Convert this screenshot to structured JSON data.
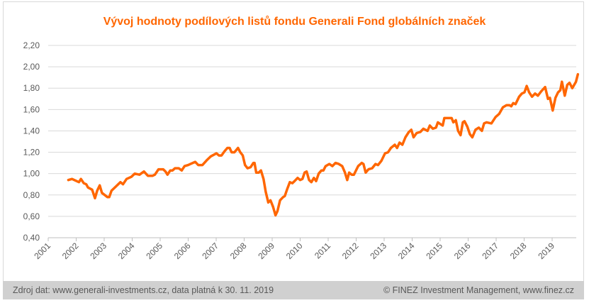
{
  "chart_data": {
    "type": "line",
    "title": "Vývoj hodnoty podílových listů fondu Generali Fond globálních značek",
    "xlabel": "",
    "ylabel": "",
    "xlim": [
      2001,
      2019.92
    ],
    "ylim": [
      0.4,
      2.2
    ],
    "grid": true,
    "legend": "none",
    "y_ticks": [
      "0,40",
      "0,60",
      "0,80",
      "1,00",
      "1,20",
      "1,40",
      "1,60",
      "1,80",
      "2,00",
      "2,20"
    ],
    "x_ticks": [
      "2001",
      "2002",
      "2003",
      "2004",
      "2005",
      "2006",
      "2007",
      "2008",
      "2009",
      "2010",
      "2011",
      "2012",
      "2013",
      "2014",
      "2015",
      "2016",
      "2017",
      "2018",
      "2019"
    ],
    "series": [
      {
        "name": "Generali Fond globálních značek",
        "color": "#ff6600",
        "x": [
          2001.72,
          2001.85,
          2002.1,
          2002.17,
          2002.27,
          2002.36,
          2002.42,
          2002.57,
          2002.67,
          2002.75,
          2002.84,
          2002.92,
          2003.12,
          2003.18,
          2003.26,
          2003.42,
          2003.58,
          2003.67,
          2003.8,
          2003.97,
          2004.09,
          2004.26,
          2004.42,
          2004.56,
          2004.73,
          2004.81,
          2004.94,
          2005.11,
          2005.19,
          2005.26,
          2005.36,
          2005.44,
          2005.53,
          2005.66,
          2005.77,
          2005.87,
          2006.0,
          2006.08,
          2006.25,
          2006.36,
          2006.51,
          2006.68,
          2006.8,
          2007.01,
          2007.1,
          2007.19,
          2007.3,
          2007.4,
          2007.48,
          2007.55,
          2007.65,
          2007.78,
          2007.86,
          2007.95,
          2008.03,
          2008.12,
          2008.23,
          2008.33,
          2008.37,
          2008.43,
          2008.52,
          2008.6,
          2008.69,
          2008.77,
          2008.86,
          2008.94,
          2009.03,
          2009.12,
          2009.19,
          2009.28,
          2009.39,
          2009.45,
          2009.53,
          2009.63,
          2009.72,
          2009.8,
          2009.91,
          2010.0,
          2010.08,
          2010.16,
          2010.23,
          2010.32,
          2010.4,
          2010.49,
          2010.57,
          2010.66,
          2010.76,
          2010.83,
          2010.91,
          2011.04,
          2011.15,
          2011.26,
          2011.38,
          2011.5,
          2011.6,
          2011.68,
          2011.75,
          2011.84,
          2011.92,
          2012.07,
          2012.2,
          2012.26,
          2012.34,
          2012.44,
          2012.57,
          2012.69,
          2012.78,
          2012.9,
          2013.03,
          2013.14,
          2013.24,
          2013.38,
          2013.46,
          2013.55,
          2013.65,
          2013.76,
          2013.88,
          2013.97,
          2014.05,
          2014.16,
          2014.29,
          2014.4,
          2014.55,
          2014.63,
          2014.74,
          2014.85,
          2014.92,
          2015.03,
          2015.09,
          2015.15,
          2015.28,
          2015.41,
          2015.47,
          2015.56,
          2015.64,
          2015.73,
          2015.81,
          2015.87,
          2015.97,
          2016.06,
          2016.15,
          2016.26,
          2016.38,
          2016.49,
          2016.57,
          2016.66,
          2016.83,
          2016.98,
          2017.11,
          2017.24,
          2017.37,
          2017.48,
          2017.54,
          2017.61,
          2017.69,
          2017.82,
          2017.92,
          2018.01,
          2018.09,
          2018.18,
          2018.28,
          2018.39,
          2018.49,
          2018.61,
          2018.75,
          2018.85,
          2018.92,
          2019.02,
          2019.12,
          2019.21,
          2019.29,
          2019.35,
          2019.45,
          2019.54,
          2019.62,
          2019.72,
          2019.85,
          2019.92
        ],
        "values": [
          0.94,
          0.95,
          0.92,
          0.95,
          0.91,
          0.9,
          0.87,
          0.85,
          0.77,
          0.84,
          0.89,
          0.82,
          0.78,
          0.78,
          0.84,
          0.88,
          0.92,
          0.9,
          0.95,
          0.97,
          1.0,
          0.99,
          1.02,
          0.98,
          0.98,
          0.99,
          1.04,
          1.04,
          1.02,
          0.99,
          1.03,
          1.03,
          1.05,
          1.05,
          1.03,
          1.07,
          1.08,
          1.09,
          1.11,
          1.08,
          1.08,
          1.13,
          1.16,
          1.19,
          1.17,
          1.17,
          1.21,
          1.24,
          1.24,
          1.2,
          1.2,
          1.24,
          1.2,
          1.17,
          1.08,
          1.05,
          1.06,
          1.1,
          1.1,
          1.01,
          1.01,
          1.03,
          0.95,
          0.83,
          0.73,
          0.75,
          0.69,
          0.61,
          0.65,
          0.75,
          0.78,
          0.79,
          0.85,
          0.92,
          0.91,
          0.93,
          0.96,
          0.94,
          0.95,
          1.01,
          1.02,
          0.94,
          0.92,
          0.96,
          0.93,
          1.0,
          1.03,
          1.03,
          1.07,
          1.09,
          1.07,
          1.1,
          1.09,
          1.07,
          1.01,
          0.94,
          1.01,
          0.99,
          0.99,
          1.07,
          1.1,
          1.09,
          1.01,
          1.04,
          1.05,
          1.09,
          1.08,
          1.12,
          1.19,
          1.2,
          1.24,
          1.27,
          1.24,
          1.29,
          1.27,
          1.34,
          1.39,
          1.41,
          1.34,
          1.38,
          1.39,
          1.42,
          1.4,
          1.45,
          1.42,
          1.43,
          1.48,
          1.46,
          1.45,
          1.52,
          1.52,
          1.52,
          1.48,
          1.5,
          1.4,
          1.36,
          1.48,
          1.49,
          1.44,
          1.37,
          1.34,
          1.41,
          1.43,
          1.4,
          1.47,
          1.48,
          1.47,
          1.53,
          1.56,
          1.62,
          1.64,
          1.64,
          1.63,
          1.66,
          1.65,
          1.72,
          1.75,
          1.76,
          1.82,
          1.76,
          1.72,
          1.75,
          1.73,
          1.77,
          1.81,
          1.7,
          1.71,
          1.59,
          1.71,
          1.76,
          1.78,
          1.86,
          1.73,
          1.83,
          1.85,
          1.8,
          1.86,
          1.93
        ]
      }
    ]
  },
  "footer": {
    "source": "Zdroj dat: www.generali-investments.cz, data platná k 30. 11. 2019",
    "copyright": "© FINEZ Investment Management, www.finez.cz"
  }
}
